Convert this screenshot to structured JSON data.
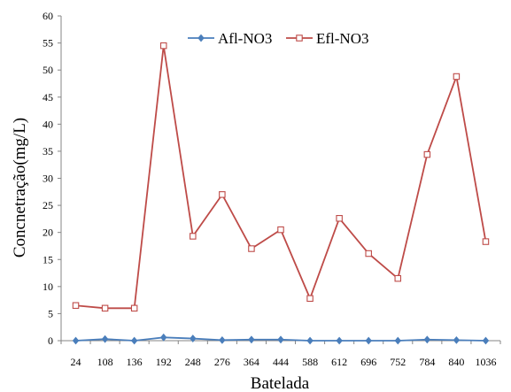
{
  "chart_data": {
    "type": "line",
    "title": "",
    "xlabel": "Batelada",
    "ylabel": "Concnetração(mg/L)",
    "ylim": [
      0,
      60
    ],
    "yticks": [
      0,
      5,
      10,
      15,
      20,
      25,
      30,
      35,
      40,
      45,
      50,
      55,
      60
    ],
    "grid": false,
    "legend_position": "top",
    "categories": [
      "24",
      "108",
      "136",
      "192",
      "248",
      "276",
      "364",
      "444",
      "588",
      "612",
      "696",
      "752",
      "784",
      "840",
      "1036"
    ],
    "series": [
      {
        "name": "Afl-NO3",
        "color": "#4a7ebb",
        "marker": "diamond",
        "values": [
          0.0,
          0.3,
          0.0,
          0.6,
          0.4,
          0.1,
          0.2,
          0.2,
          0.0,
          0.0,
          0.0,
          0.0,
          0.2,
          0.1,
          0.0
        ]
      },
      {
        "name": "Efl-NO3",
        "color": "#be4b48",
        "marker": "square",
        "values": [
          6.5,
          6.0,
          6.0,
          54.5,
          19.3,
          27.0,
          17.0,
          20.5,
          7.8,
          22.6,
          16.1,
          11.5,
          34.4,
          48.8,
          18.3
        ]
      }
    ]
  }
}
